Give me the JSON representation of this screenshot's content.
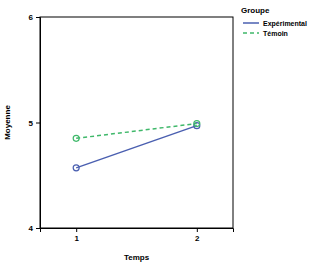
{
  "chart_data": {
    "type": "line",
    "x_label": "Temps",
    "y_label": "Moyenne",
    "legend_title": "Groupe",
    "categories": [
      "1",
      "2"
    ],
    "series": [
      {
        "name": "Expérimental",
        "color": "#4a5fb0",
        "values": [
          4.57,
          4.97
        ],
        "marker": "circle",
        "line_style": "solid"
      },
      {
        "name": "Témoin",
        "color": "#3fb86a",
        "values": [
          4.85,
          4.99
        ],
        "marker": "circle",
        "line_style": "dashed"
      }
    ],
    "ylim": [
      4,
      6
    ],
    "yticks": [
      4,
      5,
      6
    ],
    "grid": false,
    "legend": "right"
  }
}
